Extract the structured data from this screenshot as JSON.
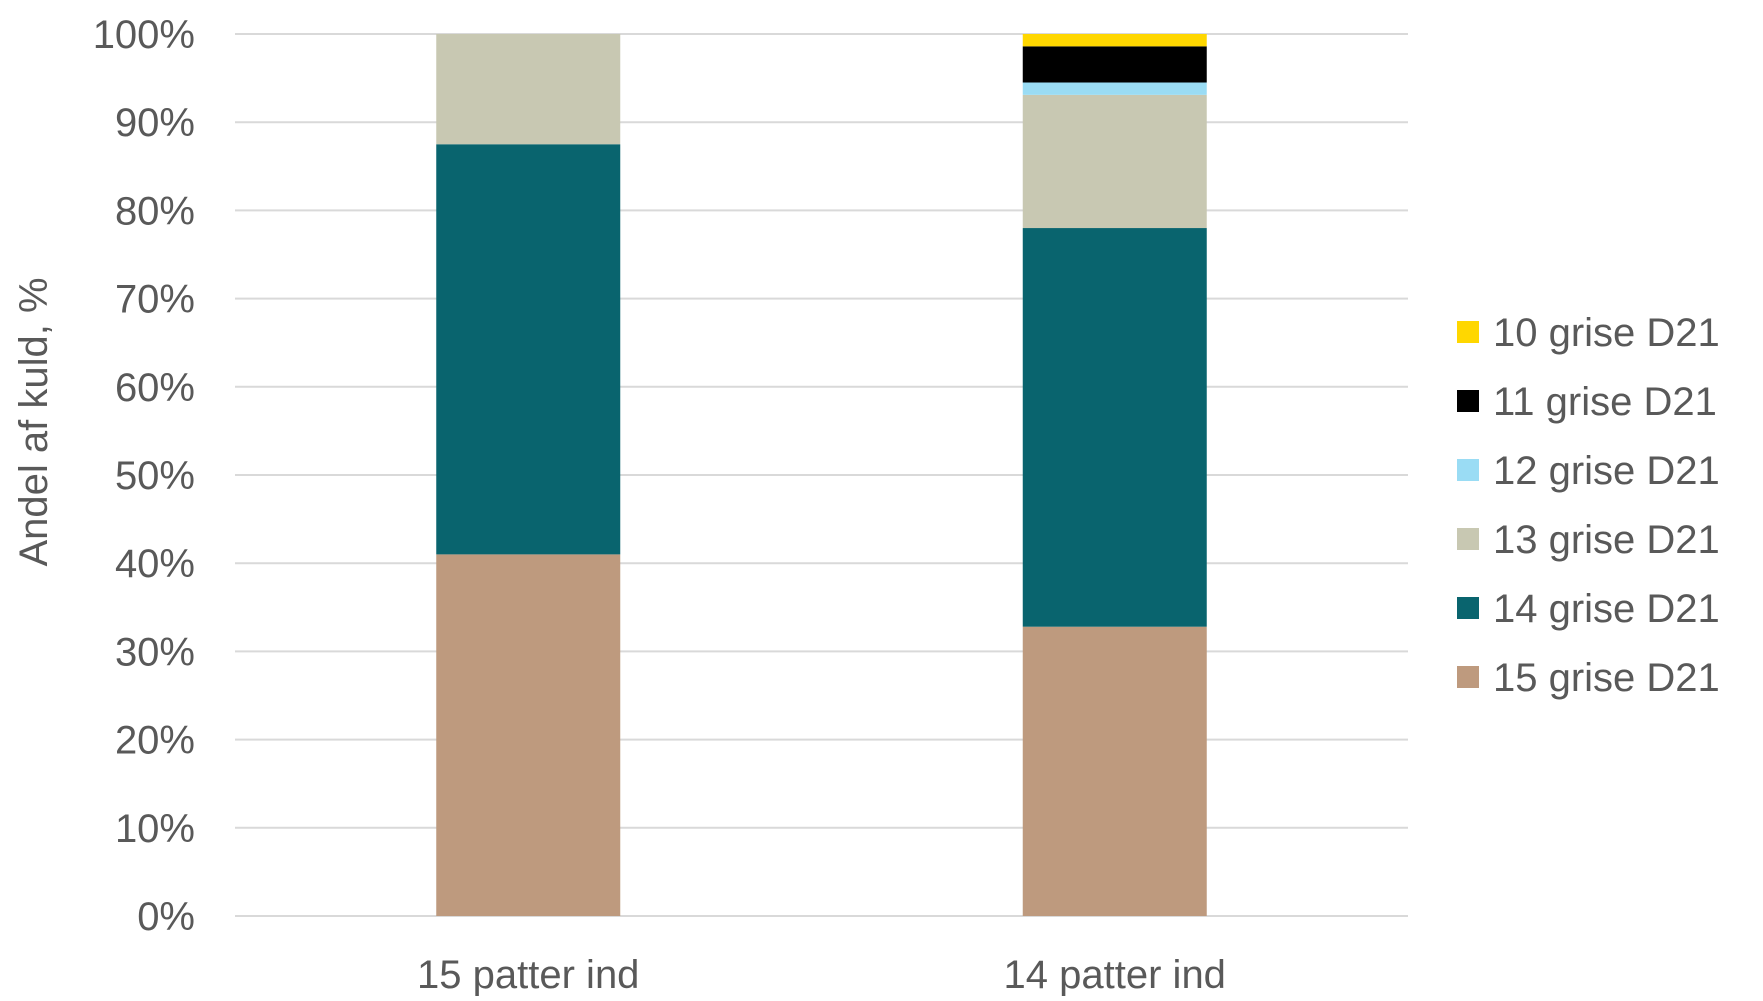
{
  "chart_data": {
    "type": "bar",
    "stacked": true,
    "title": "",
    "xlabel": "",
    "ylabel": "Andel af kuld, %",
    "ylim": [
      0,
      100
    ],
    "grid": true,
    "legend_position": "right",
    "categories": [
      "15 patter ind",
      "14 patter ind"
    ],
    "y_ticks": [
      "0%",
      "10%",
      "20%",
      "30%",
      "40%",
      "50%",
      "60%",
      "70%",
      "80%",
      "90%",
      "100%"
    ],
    "series": [
      {
        "name": "15 grise D21",
        "color": "#BE9A7E",
        "values": [
          41.0,
          32.8
        ]
      },
      {
        "name": "14 grise D21",
        "color": "#09646E",
        "values": [
          46.5,
          45.2
        ]
      },
      {
        "name": "13 grise D21",
        "color": "#C8C8B2",
        "values": [
          12.5,
          15.1
        ]
      },
      {
        "name": "12 grise D21",
        "color": "#9ADCF4",
        "values": [
          0,
          1.4
        ]
      },
      {
        "name": "11 grise D21",
        "color": "#000000",
        "values": [
          0,
          4.1
        ]
      },
      {
        "name": "10 grise D21",
        "color": "#FFD700",
        "values": [
          0,
          1.4
        ]
      }
    ],
    "legend_order": [
      "10 grise D21",
      "11 grise D21",
      "12 grise D21",
      "13 grise D21",
      "14 grise D21",
      "15 grise D21"
    ]
  }
}
